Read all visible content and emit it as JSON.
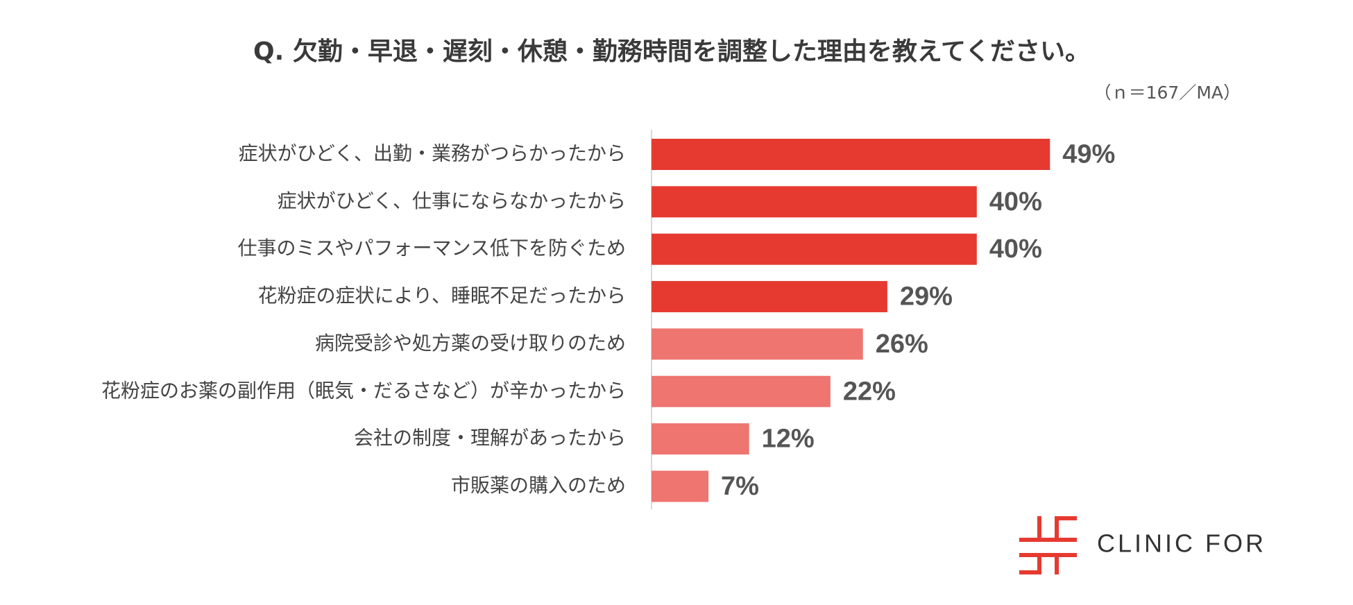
{
  "chart_data": {
    "type": "bar",
    "orientation": "horizontal",
    "title": "Q. 欠勤・早退・遅刻・休憩・勤務時間を調整した理由を教えてください。",
    "note": "（ｎ＝167／MA）",
    "categories": [
      "症状がひどく、出勤・業務がつらかったから",
      "症状がひどく、仕事にならなかったから",
      "仕事のミスやパフォーマンス低下を防ぐため",
      "花粉症の症状により、睡眠不足だったから",
      "病院受診や処方薬の受け取りのため",
      "花粉症のお薬の副作用（眠気・だるさなど）が辛かったから",
      "会社の制度・理解があったから",
      "市販薬の購入のため"
    ],
    "values": [
      49,
      40,
      40,
      29,
      26,
      22,
      12,
      7
    ],
    "value_labels": [
      "49%",
      "40%",
      "40%",
      "29%",
      "26%",
      "22%",
      "12%",
      "7%"
    ],
    "colors": [
      "#e63a31",
      "#e63a31",
      "#e63a31",
      "#e63a31",
      "#ee7570",
      "#ee7570",
      "#ee7570",
      "#ee7570"
    ],
    "brand": "CLINIC FOR"
  }
}
